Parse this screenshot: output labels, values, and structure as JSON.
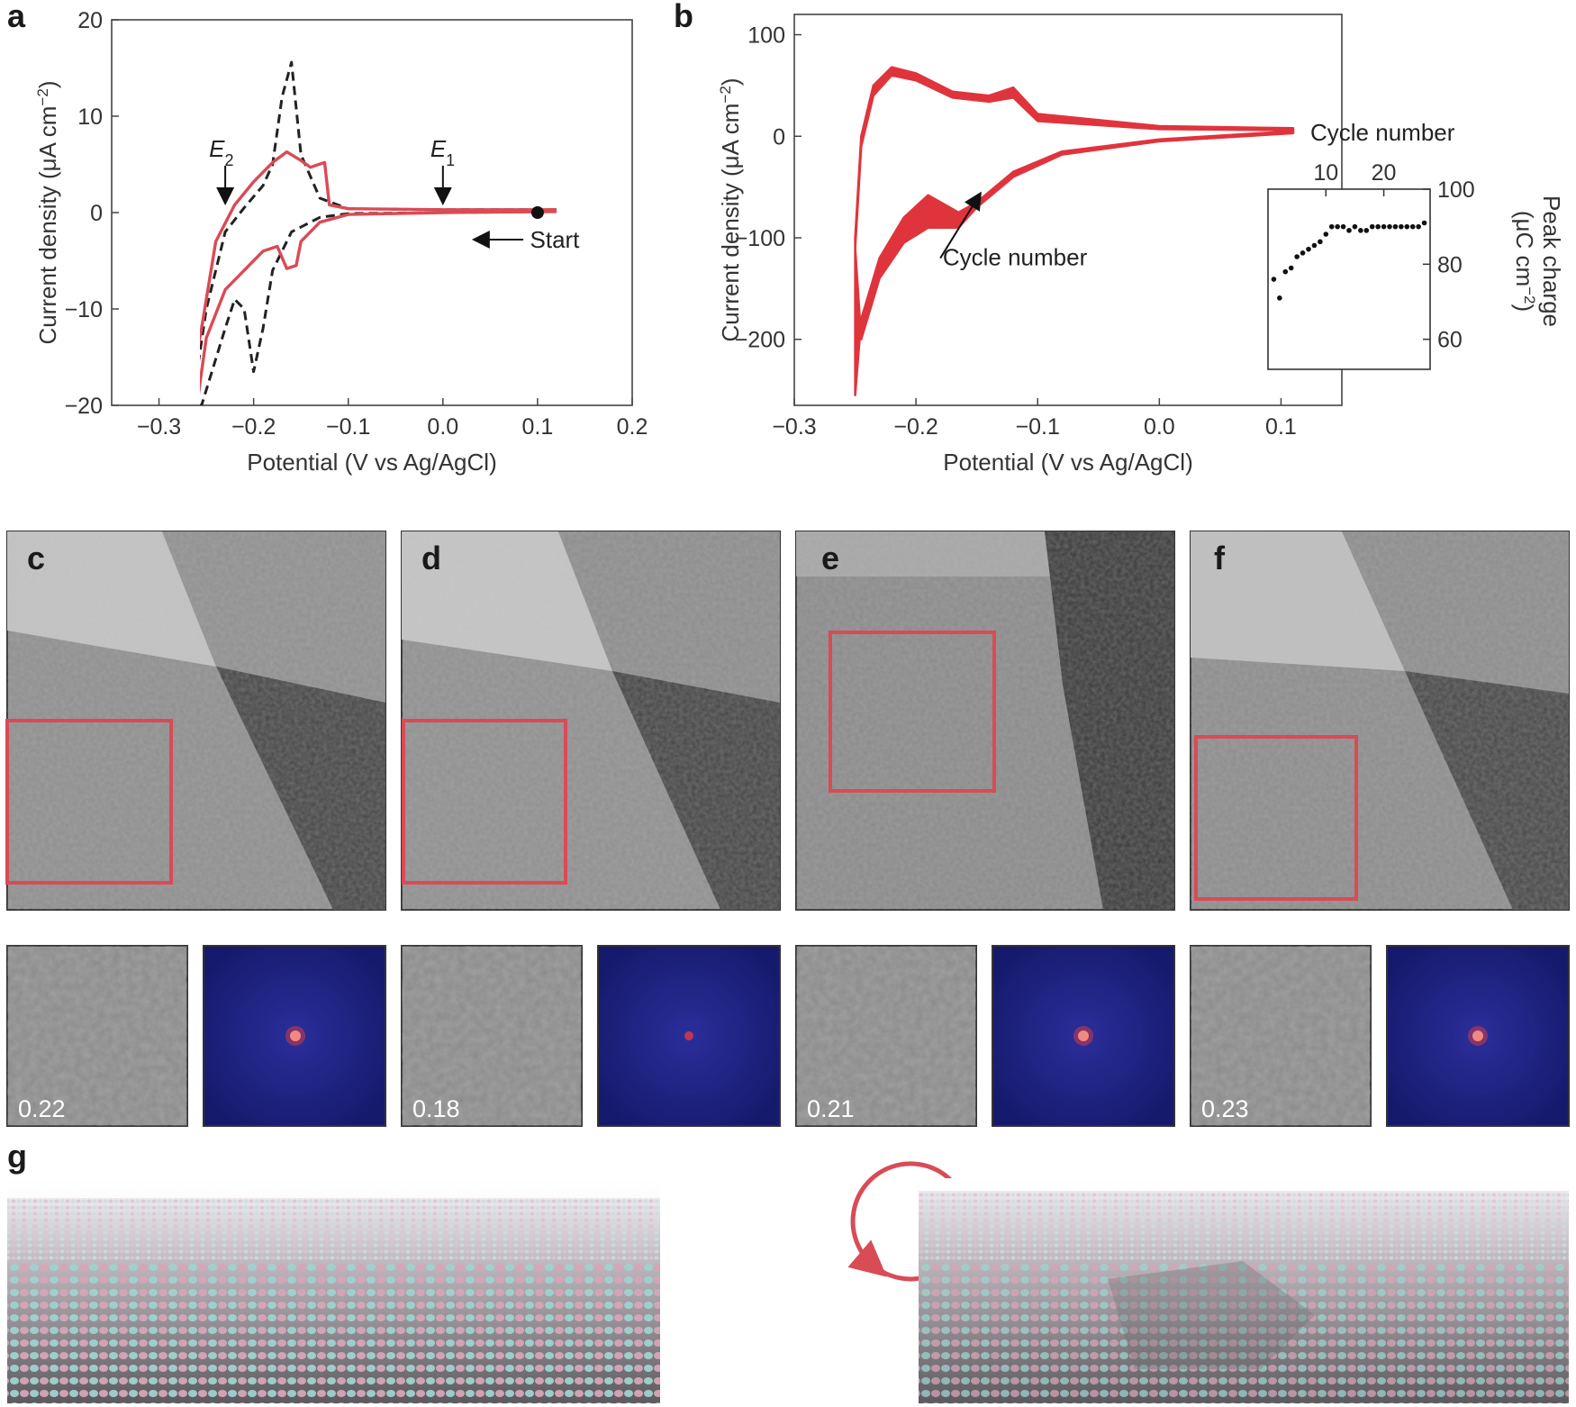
{
  "panels": {
    "a": "a",
    "b": "b",
    "c": "c",
    "d": "d",
    "e": "e",
    "f": "f",
    "g": "g"
  },
  "chart_data": [
    {
      "type": "line",
      "panel": "a",
      "xlabel": "Potential (V vs Ag/AgCl)",
      "ylabel_text": "Current density (μA cm",
      "ylabel_sup": "−2",
      "ylabel_close": ")",
      "xlim": [
        -0.35,
        0.2
      ],
      "ylim": [
        -20,
        20
      ],
      "xticks": [
        -0.3,
        -0.2,
        -0.1,
        0.0,
        0.1,
        0.2
      ],
      "xtick_labels": [
        "−0.3",
        "−0.2",
        "−0.1",
        "0.0",
        "0.1",
        "0.2"
      ],
      "yticks": [
        -20,
        -10,
        0,
        10,
        20
      ],
      "ytick_labels": [
        "−20",
        "−10",
        "0",
        "10",
        "20"
      ],
      "annotations": {
        "e2_main": "E",
        "e2_sub": "2",
        "e1_main": "E",
        "e1_sub": "1",
        "start": "Start"
      },
      "e2_x": -0.23,
      "e1_x": 0.0,
      "start_point": [
        0.1,
        0.0
      ],
      "series": [
        {
          "style": "dashed",
          "color": "#222222",
          "points": [
            [
              0.12,
              0.3
            ],
            [
              0.0,
              0.3
            ],
            [
              -0.1,
              0.4
            ],
            [
              -0.13,
              1.5
            ],
            [
              -0.15,
              6
            ],
            [
              -0.16,
              15.6
            ],
            [
              -0.17,
              12
            ],
            [
              -0.18,
              5
            ],
            [
              -0.19,
              2.8
            ],
            [
              -0.21,
              0.5
            ],
            [
              -0.23,
              -2
            ],
            [
              -0.25,
              -10
            ],
            [
              -0.265,
              -20
            ],
            [
              -0.255,
              -20
            ],
            [
              -0.23,
              -12
            ],
            [
              -0.22,
              -9
            ],
            [
              -0.21,
              -10
            ],
            [
              -0.2,
              -16.5
            ],
            [
              -0.19,
              -12
            ],
            [
              -0.18,
              -6
            ],
            [
              -0.16,
              -2
            ],
            [
              -0.13,
              -0.5
            ],
            [
              -0.1,
              -0.1
            ],
            [
              0.0,
              0.0
            ],
            [
              0.12,
              0.1
            ]
          ]
        },
        {
          "style": "solid",
          "color": "#d94b55",
          "points": [
            [
              0.12,
              0.3
            ],
            [
              0.0,
              0.3
            ],
            [
              -0.1,
              0.4
            ],
            [
              -0.12,
              0.8
            ],
            [
              -0.125,
              5.2
            ],
            [
              -0.14,
              4.7
            ],
            [
              -0.15,
              5.4
            ],
            [
              -0.165,
              6.3
            ],
            [
              -0.18,
              5.2
            ],
            [
              -0.2,
              3.2
            ],
            [
              -0.22,
              0.8
            ],
            [
              -0.24,
              -3
            ],
            [
              -0.255,
              -12
            ],
            [
              -0.27,
              -20
            ],
            [
              -0.26,
              -20
            ],
            [
              -0.25,
              -13
            ],
            [
              -0.23,
              -8
            ],
            [
              -0.21,
              -6
            ],
            [
              -0.19,
              -4
            ],
            [
              -0.175,
              -3.5
            ],
            [
              -0.165,
              -5.8
            ],
            [
              -0.155,
              -5.5
            ],
            [
              -0.15,
              -3
            ],
            [
              -0.13,
              -1
            ],
            [
              -0.1,
              -0.2
            ],
            [
              0.0,
              0.0
            ],
            [
              0.12,
              0.1
            ]
          ]
        }
      ]
    },
    {
      "type": "line",
      "panel": "b",
      "xlabel": "Potential (V vs Ag/AgCl)",
      "ylabel_text": "Current density (μA cm",
      "ylabel_sup": "−2",
      "ylabel_close": ")",
      "xlim": [
        -0.3,
        0.15
      ],
      "ylim": [
        -265,
        120
      ],
      "xticks": [
        -0.3,
        -0.2,
        -0.1,
        0.0,
        0.1
      ],
      "xtick_labels": [
        "−0.3",
        "−0.2",
        "−0.1",
        "0.0",
        "0.1"
      ],
      "yticks": [
        -200,
        -100,
        0,
        100
      ],
      "ytick_labels": [
        "−200",
        "−100",
        "0",
        "100"
      ],
      "annotations": {
        "cycle_number": "Cycle number"
      },
      "series": [
        {
          "style": "band",
          "color": "#e0343c",
          "outer": [
            [
              0.11,
              8
            ],
            [
              0.0,
              10
            ],
            [
              -0.1,
              22
            ],
            [
              -0.12,
              48
            ],
            [
              -0.14,
              40
            ],
            [
              -0.17,
              44
            ],
            [
              -0.2,
              62
            ],
            [
              -0.22,
              68
            ],
            [
              -0.235,
              50
            ],
            [
              -0.245,
              0
            ],
            [
              -0.25,
              -100
            ],
            [
              -0.25,
              -255
            ],
            [
              -0.245,
              -180
            ],
            [
              -0.23,
              -120
            ],
            [
              -0.21,
              -80
            ],
            [
              -0.19,
              -58
            ],
            [
              -0.165,
              -75
            ],
            [
              -0.15,
              -65
            ],
            [
              -0.12,
              -35
            ],
            [
              -0.08,
              -15
            ],
            [
              0.0,
              -3
            ],
            [
              0.11,
              5
            ]
          ],
          "inner": [
            [
              0.11,
              6
            ],
            [
              0.0,
              7
            ],
            [
              -0.1,
              15
            ],
            [
              -0.12,
              38
            ],
            [
              -0.14,
              34
            ],
            [
              -0.17,
              38
            ],
            [
              -0.2,
              55
            ],
            [
              -0.22,
              60
            ],
            [
              -0.235,
              40
            ],
            [
              -0.245,
              -10
            ],
            [
              -0.25,
              -110
            ],
            [
              -0.245,
              -200
            ],
            [
              -0.23,
              -140
            ],
            [
              -0.21,
              -105
            ],
            [
              -0.19,
              -90
            ],
            [
              -0.165,
              -90
            ],
            [
              -0.15,
              -70
            ],
            [
              -0.12,
              -40
            ],
            [
              -0.08,
              -18
            ],
            [
              0.0,
              -5
            ],
            [
              0.11,
              3
            ]
          ]
        }
      ]
    },
    {
      "type": "scatter",
      "panel": "b-inset",
      "title": "Cycle number",
      "ylabel": "Peak charge",
      "ylabel_unit_text": "(μC cm",
      "ylabel_unit_sup": "−2",
      "ylabel_unit_close": ")",
      "xlim": [
        0,
        28
      ],
      "ylim": [
        52,
        100
      ],
      "xticks": [
        10,
        20
      ],
      "xtick_labels": [
        "10",
        "20"
      ],
      "yticks": [
        60,
        80,
        100
      ],
      "ytick_labels": [
        "60",
        "80",
        "100"
      ],
      "x": [
        1,
        2,
        3,
        4,
        5,
        6,
        7,
        8,
        9,
        10,
        11,
        12,
        13,
        14,
        15,
        16,
        17,
        18,
        19,
        20,
        21,
        22,
        23,
        24,
        25,
        26,
        27
      ],
      "y": [
        76,
        71,
        78,
        79,
        82,
        83,
        84,
        85,
        86,
        88,
        90,
        90,
        90,
        89,
        90,
        89,
        89,
        90,
        90,
        90,
        90,
        90,
        90,
        90,
        90,
        90,
        91
      ]
    }
  ],
  "stm_values": [
    "0.22",
    "0.18",
    "0.21",
    "0.23"
  ],
  "colors": {
    "red": "#d94b55",
    "dark": "#222222",
    "stm_box": "#d94b55"
  }
}
